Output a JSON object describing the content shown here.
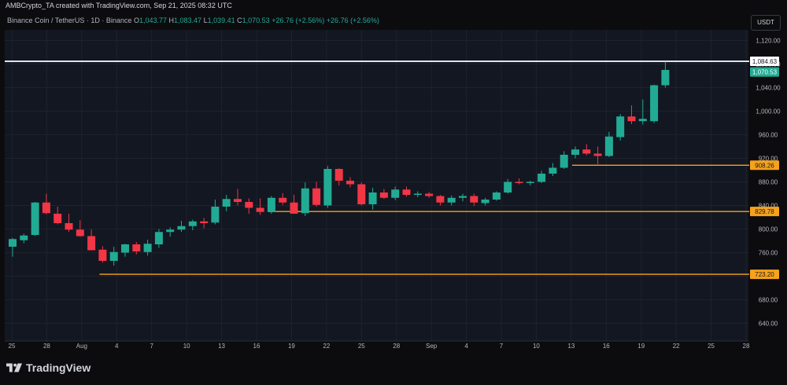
{
  "header": {
    "attribution": "AMBCrypto_TA created with TradingView.com, Sep 21, 2025 08:32 UTC",
    "symbol": "Binance Coin / TetherUS · 1D · Binance",
    "ohlc": {
      "o_label": "O",
      "o": "1,043.77",
      "h_label": "H",
      "h": "1,083.47",
      "l_label": "L",
      "l": "1,039.41",
      "c_label": "C",
      "c": "1,070.53"
    },
    "change": "+26.76 (+2.56%)",
    "change2": "+26.76 (+2.56%)"
  },
  "currency_button": "USDT",
  "branding": {
    "text": "TradingView"
  },
  "colors": {
    "up": "#22ab94",
    "down": "#f23645",
    "support": "#f7a21b",
    "resistance": "#ffffff",
    "background": "#131722",
    "grid": "#1e222d",
    "text": "#b2b5be"
  },
  "chart_data": {
    "type": "candlestick",
    "ylim": [
      610,
      1138
    ],
    "y_ticks": [
      640,
      680,
      720,
      760,
      800,
      840,
      880,
      920,
      960,
      1000,
      1040,
      1080,
      1120
    ],
    "y_tick_labels": [
      "640.00",
      "680.00",
      "720.00",
      "760.00",
      "800.00",
      "840.00",
      "880.00",
      "920.00",
      "960.00",
      "1,000.00",
      "1,040.00",
      "1,080.00",
      "1,120.00"
    ],
    "x_labels": [
      "25",
      "28",
      "Aug",
      "4",
      "7",
      "10",
      "13",
      "16",
      "19",
      "22",
      "25",
      "28",
      "Sep",
      "4",
      "7",
      "10",
      "13",
      "16",
      "19",
      "22",
      "25",
      "28"
    ],
    "candles": [
      {
        "o": 770,
        "h": 785,
        "l": 753,
        "c": 783
      },
      {
        "o": 781,
        "h": 792,
        "l": 776,
        "c": 789
      },
      {
        "o": 790,
        "h": 846,
        "l": 788,
        "c": 845
      },
      {
        "o": 845,
        "h": 860,
        "l": 825,
        "c": 827
      },
      {
        "o": 826,
        "h": 838,
        "l": 808,
        "c": 810
      },
      {
        "o": 810,
        "h": 826,
        "l": 795,
        "c": 799
      },
      {
        "o": 799,
        "h": 815,
        "l": 787,
        "c": 788
      },
      {
        "o": 788,
        "h": 799,
        "l": 765,
        "c": 764
      },
      {
        "o": 765,
        "h": 771,
        "l": 743,
        "c": 746
      },
      {
        "o": 746,
        "h": 770,
        "l": 738,
        "c": 761
      },
      {
        "o": 760,
        "h": 775,
        "l": 753,
        "c": 774
      },
      {
        "o": 774,
        "h": 778,
        "l": 757,
        "c": 762
      },
      {
        "o": 761,
        "h": 782,
        "l": 755,
        "c": 775
      },
      {
        "o": 774,
        "h": 800,
        "l": 768,
        "c": 795
      },
      {
        "o": 795,
        "h": 803,
        "l": 787,
        "c": 799
      },
      {
        "o": 799,
        "h": 814,
        "l": 795,
        "c": 805
      },
      {
        "o": 805,
        "h": 816,
        "l": 798,
        "c": 813
      },
      {
        "o": 813,
        "h": 819,
        "l": 801,
        "c": 810
      },
      {
        "o": 811,
        "h": 850,
        "l": 808,
        "c": 838
      },
      {
        "o": 838,
        "h": 858,
        "l": 830,
        "c": 851
      },
      {
        "o": 851,
        "h": 868,
        "l": 840,
        "c": 846
      },
      {
        "o": 846,
        "h": 852,
        "l": 826,
        "c": 836
      },
      {
        "o": 836,
        "h": 852,
        "l": 824,
        "c": 829
      },
      {
        "o": 829,
        "h": 856,
        "l": 826,
        "c": 853
      },
      {
        "o": 853,
        "h": 861,
        "l": 841,
        "c": 845
      },
      {
        "o": 845,
        "h": 858,
        "l": 827,
        "c": 826
      },
      {
        "o": 827,
        "h": 879,
        "l": 822,
        "c": 869
      },
      {
        "o": 869,
        "h": 880,
        "l": 838,
        "c": 841
      },
      {
        "o": 840,
        "h": 907,
        "l": 836,
        "c": 902
      },
      {
        "o": 902,
        "h": 903,
        "l": 874,
        "c": 882
      },
      {
        "o": 882,
        "h": 888,
        "l": 871,
        "c": 876
      },
      {
        "o": 876,
        "h": 879,
        "l": 840,
        "c": 842
      },
      {
        "o": 842,
        "h": 870,
        "l": 833,
        "c": 862
      },
      {
        "o": 862,
        "h": 868,
        "l": 851,
        "c": 853
      },
      {
        "o": 853,
        "h": 872,
        "l": 849,
        "c": 867
      },
      {
        "o": 867,
        "h": 872,
        "l": 855,
        "c": 858
      },
      {
        "o": 858,
        "h": 864,
        "l": 854,
        "c": 860
      },
      {
        "o": 860,
        "h": 863,
        "l": 853,
        "c": 856
      },
      {
        "o": 856,
        "h": 858,
        "l": 840,
        "c": 845
      },
      {
        "o": 845,
        "h": 857,
        "l": 840,
        "c": 853
      },
      {
        "o": 853,
        "h": 860,
        "l": 847,
        "c": 856
      },
      {
        "o": 856,
        "h": 860,
        "l": 839,
        "c": 845
      },
      {
        "o": 844,
        "h": 853,
        "l": 840,
        "c": 850
      },
      {
        "o": 850,
        "h": 864,
        "l": 848,
        "c": 862
      },
      {
        "o": 862,
        "h": 885,
        "l": 860,
        "c": 880
      },
      {
        "o": 880,
        "h": 886,
        "l": 876,
        "c": 878
      },
      {
        "o": 878,
        "h": 882,
        "l": 874,
        "c": 880
      },
      {
        "o": 880,
        "h": 899,
        "l": 878,
        "c": 894
      },
      {
        "o": 894,
        "h": 912,
        "l": 890,
        "c": 904
      },
      {
        "o": 904,
        "h": 932,
        "l": 902,
        "c": 926
      },
      {
        "o": 926,
        "h": 940,
        "l": 920,
        "c": 935
      },
      {
        "o": 935,
        "h": 944,
        "l": 925,
        "c": 928
      },
      {
        "o": 928,
        "h": 940,
        "l": 910,
        "c": 924
      },
      {
        "o": 924,
        "h": 965,
        "l": 922,
        "c": 957
      },
      {
        "o": 956,
        "h": 995,
        "l": 950,
        "c": 991
      },
      {
        "o": 991,
        "h": 1010,
        "l": 978,
        "c": 983
      },
      {
        "o": 983,
        "h": 1020,
        "l": 977,
        "c": 987
      },
      {
        "o": 983,
        "h": 1045,
        "l": 980,
        "c": 1044
      },
      {
        "o": 1044,
        "h": 1084,
        "l": 1040,
        "c": 1070
      }
    ],
    "candle_x_start": 16,
    "candle_x_step": 14.3,
    "levels": [
      {
        "value": 1084.63,
        "label": "1,084.63",
        "color": "#ffffff",
        "from_index": 0
      },
      {
        "value": 908.26,
        "label": "908.26",
        "color": "#f7a21b",
        "from_index": 50
      },
      {
        "value": 829.78,
        "label": "829.78",
        "color": "#f7a21b",
        "from_index": 23
      },
      {
        "value": 723.2,
        "label": "723.20",
        "color": "#f7a21b",
        "from_index": 8
      }
    ],
    "last_price": {
      "value": 1070.53,
      "label": "1,070.53",
      "color": "#22ab94"
    }
  }
}
